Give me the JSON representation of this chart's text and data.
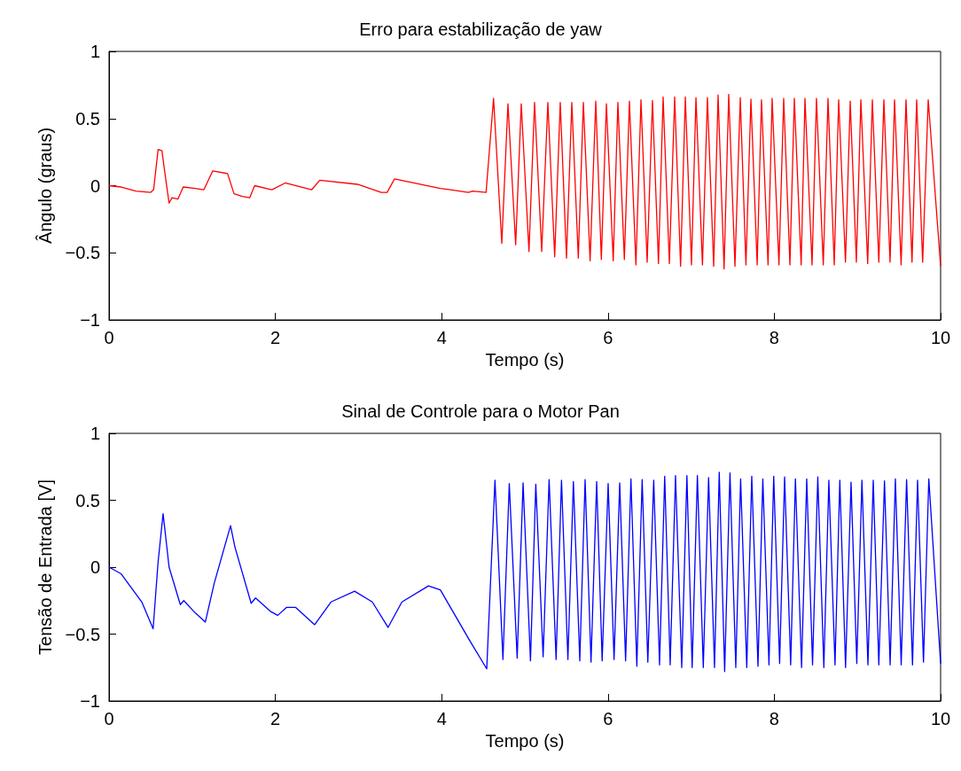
{
  "chart_data": [
    {
      "type": "line",
      "title": "Erro para estabilização de yaw",
      "xlabel": "Tempo (s)",
      "ylabel": "Ângulo (graus)",
      "xlim": [
        0,
        10
      ],
      "xticks": [
        0,
        2,
        4,
        6,
        8,
        10
      ],
      "ylim": [
        -1,
        1
      ],
      "yticks": [
        -1,
        -0.5,
        0,
        0.5,
        1
      ],
      "grid": false,
      "marker": "none",
      "line_style": "solid",
      "series": [
        {
          "color": "#ff0000",
          "x": [
            0,
            0.146,
            0.323,
            0.501,
            0.536,
            0.59,
            0.636,
            0.679,
            0.722,
            0.757,
            0.828,
            0.892,
            1.034,
            1.141,
            1.247,
            1.425,
            1.503,
            1.603,
            1.691,
            1.751,
            1.958,
            2.118,
            2.438,
            2.534,
            2.988,
            3.273,
            3.344,
            3.433,
            3.984,
            4.321,
            4.374,
            4.534,
            4.624,
            4.723,
            4.797,
            4.89,
            4.957,
            5.05,
            5.117,
            5.203,
            5.277,
            5.359,
            5.426,
            5.501,
            5.565,
            5.643,
            5.704,
            5.785,
            5.853,
            5.92,
            5.981,
            6.063,
            6.119,
            6.197,
            6.258,
            6.336,
            6.397,
            6.471,
            6.535,
            6.607,
            6.663,
            6.738,
            6.802,
            6.873,
            6.93,
            7.004,
            7.058,
            7.136,
            7.196,
            7.271,
            7.324,
            7.396,
            7.452,
            7.527,
            7.591,
            7.659,
            7.719,
            7.794,
            7.846,
            7.925,
            7.974,
            8.056,
            8.113,
            8.188,
            8.241,
            8.323,
            8.369,
            8.454,
            8.507,
            8.589,
            8.646,
            8.721,
            8.774,
            8.856,
            8.913,
            8.987,
            9.041,
            9.123,
            9.179,
            9.257,
            9.318,
            9.392,
            9.446,
            9.525,
            9.584,
            9.656,
            9.712,
            9.784,
            9.851,
            10
          ],
          "values": [
            0,
            -0.01,
            -0.04,
            -0.05,
            -0.03,
            0.27,
            0.26,
            0.06,
            -0.13,
            -0.09,
            -0.1,
            -0.01,
            -0.02,
            -0.03,
            0.11,
            0.09,
            -0.06,
            -0.08,
            -0.09,
            0,
            -0.03,
            0.02,
            -0.03,
            0.04,
            0.01,
            -0.05,
            -0.05,
            0.05,
            -0.02,
            -0.05,
            -0.04,
            -0.05,
            0.65,
            -0.43,
            0.61,
            -0.44,
            0.61,
            -0.49,
            0.62,
            -0.49,
            0.62,
            -0.53,
            0.62,
            -0.54,
            0.62,
            -0.54,
            0.62,
            -0.56,
            0.63,
            -0.55,
            0.61,
            -0.56,
            0.62,
            -0.55,
            0.63,
            -0.59,
            0.64,
            -0.57,
            0.635,
            -0.58,
            0.66,
            -0.58,
            0.66,
            -0.6,
            0.66,
            -0.59,
            0.655,
            -0.59,
            0.655,
            -0.6,
            0.675,
            -0.62,
            0.68,
            -0.6,
            0.655,
            -0.59,
            0.645,
            -0.59,
            0.64,
            -0.59,
            0.65,
            -0.59,
            0.65,
            -0.59,
            0.65,
            -0.59,
            0.65,
            -0.59,
            0.65,
            -0.59,
            0.65,
            -0.59,
            0.64,
            -0.57,
            0.63,
            -0.57,
            0.64,
            -0.58,
            0.64,
            -0.57,
            0.64,
            -0.57,
            0.64,
            -0.59,
            0.64,
            -0.57,
            0.64,
            -0.57,
            0.64,
            -0.6
          ]
        }
      ]
    },
    {
      "type": "line",
      "title": "Sinal de Controle para o Motor Pan",
      "xlabel": "Tempo (s)",
      "ylabel": "Tensão de Entrada [V]",
      "xlim": [
        0,
        10
      ],
      "xticks": [
        0,
        2,
        4,
        6,
        8,
        10
      ],
      "ylim": [
        -1,
        1
      ],
      "yticks": [
        -1,
        -0.5,
        0,
        0.5,
        1
      ],
      "grid": false,
      "marker": "none",
      "line_style": "solid",
      "series": [
        {
          "color": "#0000ff",
          "x": [
            0,
            0.146,
            0.394,
            0.53,
            0.59,
            0.65,
            0.722,
            0.857,
            0.899,
            1.034,
            1.158,
            1.265,
            1.461,
            1.514,
            1.709,
            1.762,
            1.94,
            2.029,
            2.136,
            2.242,
            2.473,
            2.669,
            2.953,
            3.166,
            3.355,
            3.522,
            3.841,
            3.984,
            4.339,
            4.542,
            4.641,
            4.737,
            4.813,
            4.908,
            4.979,
            5.068,
            5.132,
            5.22,
            5.292,
            5.376,
            5.441,
            5.518,
            5.584,
            5.661,
            5.725,
            5.796,
            5.864,
            5.93,
            6.002,
            6.073,
            6.141,
            6.212,
            6.276,
            6.347,
            6.411,
            6.479,
            6.55,
            6.62,
            6.682,
            6.748,
            6.812,
            6.887,
            6.949,
            7.012,
            7.075,
            7.146,
            7.21,
            7.281,
            7.338,
            7.403,
            7.467,
            7.537,
            7.595,
            7.669,
            7.729,
            7.804,
            7.862,
            7.936,
            7.993,
            8.064,
            8.124,
            8.197,
            8.254,
            8.328,
            8.39,
            8.46,
            8.523,
            8.596,
            8.656,
            8.73,
            8.788,
            8.857,
            8.923,
            8.992,
            9.054,
            9.126,
            9.19,
            9.257,
            9.325,
            9.393,
            9.456,
            9.526,
            9.591,
            9.662,
            9.723,
            9.794,
            9.858,
            10
          ],
          "values": [
            0,
            -0.05,
            -0.26,
            -0.46,
            0.04,
            0.4,
            0,
            -0.28,
            -0.25,
            -0.34,
            -0.41,
            -0.12,
            0.31,
            0.15,
            -0.27,
            -0.23,
            -0.33,
            -0.36,
            -0.3,
            -0.3,
            -0.43,
            -0.26,
            -0.18,
            -0.26,
            -0.45,
            -0.26,
            -0.14,
            -0.17,
            -0.55,
            -0.76,
            0.65,
            -0.69,
            0.625,
            -0.68,
            0.63,
            -0.7,
            0.62,
            -0.67,
            0.655,
            -0.69,
            0.65,
            -0.69,
            0.64,
            -0.7,
            0.655,
            -0.71,
            0.64,
            -0.7,
            0.625,
            -0.69,
            0.63,
            -0.7,
            0.66,
            -0.74,
            0.655,
            -0.71,
            0.65,
            -0.73,
            0.68,
            -0.73,
            0.685,
            -0.75,
            0.685,
            -0.75,
            0.685,
            -0.75,
            0.67,
            -0.75,
            0.71,
            -0.78,
            0.705,
            -0.75,
            0.66,
            -0.75,
            0.68,
            -0.74,
            0.66,
            -0.73,
            0.68,
            -0.72,
            0.675,
            -0.73,
            0.66,
            -0.75,
            0.66,
            -0.73,
            0.675,
            -0.75,
            0.65,
            -0.73,
            0.65,
            -0.75,
            0.635,
            -0.72,
            0.65,
            -0.73,
            0.65,
            -0.73,
            0.645,
            -0.73,
            0.66,
            -0.73,
            0.655,
            -0.73,
            0.65,
            -0.71,
            0.66,
            -0.72
          ]
        }
      ]
    }
  ]
}
